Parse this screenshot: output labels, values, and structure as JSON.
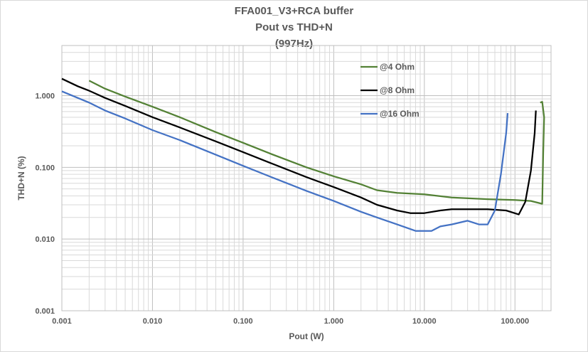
{
  "chart_data": {
    "type": "line",
    "title": "FFA001_V3+RCA buffer",
    "subtitle": "Pout vs THD+N",
    "subtitle2": "(997Hz)",
    "xlabel": "Pout (W)",
    "ylabel": "THD+N (%)",
    "xscale": "log",
    "yscale": "log",
    "xlim": [
      0.001,
      250
    ],
    "ylim": [
      0.001,
      5
    ],
    "x_ticks": [
      "0.001",
      "0.010",
      "0.100",
      "1.000",
      "10.000",
      "100.000"
    ],
    "y_ticks": [
      "0.001",
      "0.010",
      "0.100",
      "1.000"
    ],
    "grid": true,
    "legend_position": "top-right",
    "series": [
      {
        "name": "@4 Ohm",
        "color": "#538135",
        "points": [
          [
            0.002,
            1.62
          ],
          [
            0.003,
            1.25
          ],
          [
            0.005,
            0.97
          ],
          [
            0.01,
            0.7
          ],
          [
            0.02,
            0.5
          ],
          [
            0.05,
            0.31
          ],
          [
            0.1,
            0.22
          ],
          [
            0.2,
            0.155
          ],
          [
            0.5,
            0.1
          ],
          [
            1,
            0.075
          ],
          [
            2,
            0.058
          ],
          [
            3,
            0.048
          ],
          [
            5,
            0.044
          ],
          [
            10,
            0.042
          ],
          [
            20,
            0.038
          ],
          [
            50,
            0.036
          ],
          [
            100,
            0.035
          ],
          [
            150,
            0.034
          ],
          [
            200,
            0.031
          ],
          [
            205,
            0.16
          ],
          [
            210,
            0.5
          ],
          [
            200,
            0.82
          ],
          [
            190,
            0.8
          ]
        ]
      },
      {
        "name": "@8 Ohm",
        "color": "#000000",
        "points": [
          [
            0.001,
            1.72
          ],
          [
            0.0015,
            1.35
          ],
          [
            0.002,
            1.17
          ],
          [
            0.003,
            0.93
          ],
          [
            0.005,
            0.72
          ],
          [
            0.01,
            0.5
          ],
          [
            0.02,
            0.36
          ],
          [
            0.05,
            0.23
          ],
          [
            0.1,
            0.163
          ],
          [
            0.2,
            0.115
          ],
          [
            0.5,
            0.073
          ],
          [
            1,
            0.053
          ],
          [
            2,
            0.038
          ],
          [
            3,
            0.03
          ],
          [
            5,
            0.025
          ],
          [
            7,
            0.023
          ],
          [
            10,
            0.023
          ],
          [
            15,
            0.025
          ],
          [
            20,
            0.026
          ],
          [
            50,
            0.026
          ],
          [
            80,
            0.025
          ],
          [
            110,
            0.022
          ],
          [
            130,
            0.033
          ],
          [
            150,
            0.09
          ],
          [
            165,
            0.3
          ],
          [
            170,
            0.62
          ]
        ]
      },
      {
        "name": "@16 Ohm",
        "color": "#4472c4",
        "points": [
          [
            0.001,
            1.15
          ],
          [
            0.002,
            0.8
          ],
          [
            0.003,
            0.62
          ],
          [
            0.005,
            0.48
          ],
          [
            0.01,
            0.33
          ],
          [
            0.02,
            0.24
          ],
          [
            0.05,
            0.15
          ],
          [
            0.1,
            0.105
          ],
          [
            0.2,
            0.074
          ],
          [
            0.5,
            0.047
          ],
          [
            1,
            0.034
          ],
          [
            2,
            0.024
          ],
          [
            3,
            0.02
          ],
          [
            5,
            0.016
          ],
          [
            8,
            0.013
          ],
          [
            10,
            0.013
          ],
          [
            12,
            0.013
          ],
          [
            15,
            0.015
          ],
          [
            20,
            0.016
          ],
          [
            30,
            0.018
          ],
          [
            40,
            0.016
          ],
          [
            50,
            0.016
          ],
          [
            60,
            0.025
          ],
          [
            70,
            0.08
          ],
          [
            80,
            0.3
          ],
          [
            83,
            0.57
          ]
        ]
      }
    ]
  }
}
